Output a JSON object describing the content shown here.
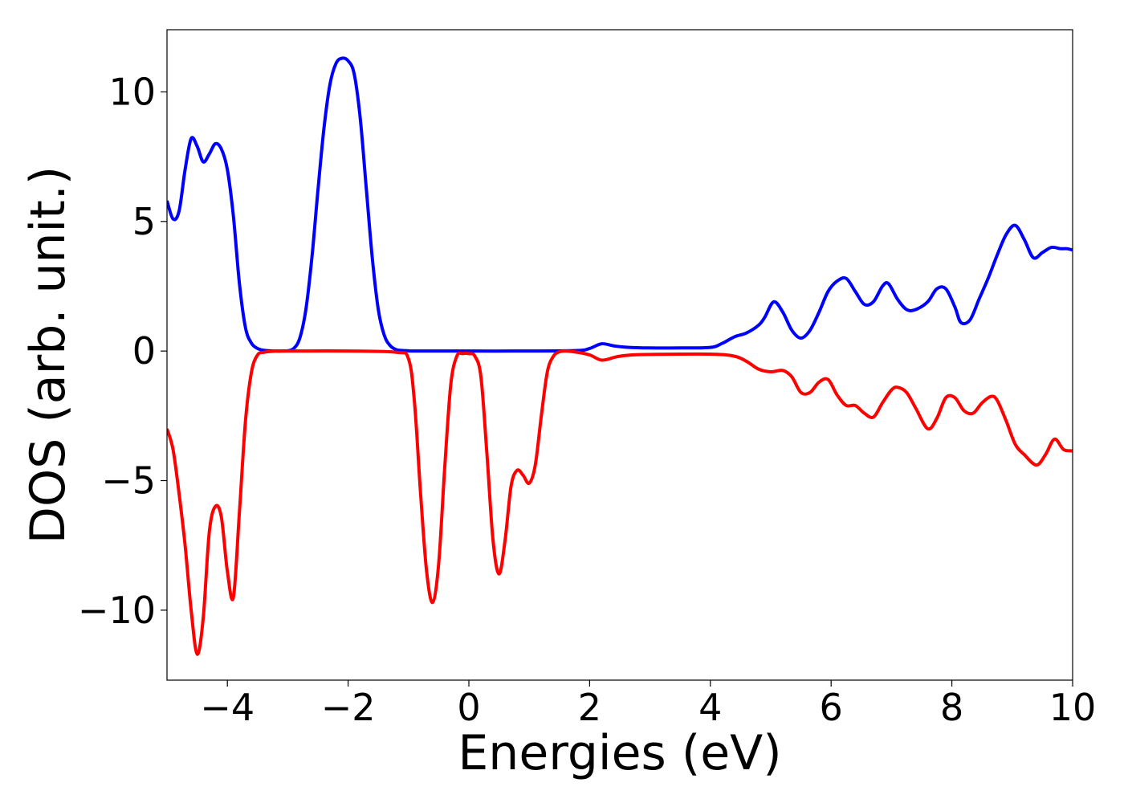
{
  "chart_data": {
    "type": "line",
    "title": "",
    "xlabel": "Energies (eV)",
    "ylabel": "DOS (arb. unit.)",
    "xlim": [
      -5,
      10
    ],
    "ylim": [
      -12.7,
      12.4
    ],
    "grid": false,
    "legend": "none",
    "xticks": [
      -4,
      -2,
      0,
      2,
      4,
      6,
      8,
      10
    ],
    "xtick_labels": [
      "−4",
      "−2",
      "0",
      "2",
      "4",
      "6",
      "8",
      "10"
    ],
    "yticks": [
      10,
      5,
      0,
      -5,
      -10
    ],
    "ytick_labels": [
      "10",
      "5",
      "0",
      "−5",
      "−10"
    ],
    "series": [
      {
        "color": "#0000ff",
        "x": [
          -5.0,
          -4.9,
          -4.8,
          -4.7,
          -4.6,
          -4.5,
          -4.4,
          -4.3,
          -4.2,
          -4.1,
          -4.0,
          -3.9,
          -3.8,
          -3.7,
          -3.6,
          -3.5,
          -3.4,
          -3.3,
          -3.2,
          -3.1,
          -3.0,
          -2.9,
          -2.8,
          -2.7,
          -2.6,
          -2.5,
          -2.4,
          -2.3,
          -2.2,
          -2.1,
          -2.0,
          -1.9,
          -1.8,
          -1.7,
          -1.6,
          -1.5,
          -1.4,
          -1.3,
          -1.2,
          -1.1,
          -1.0,
          -0.9,
          0.0,
          1.0,
          1.8,
          2.0,
          2.2,
          2.4,
          2.6,
          3.0,
          3.5,
          4.0,
          4.2,
          4.4,
          4.6,
          4.8,
          4.9,
          5.05,
          5.2,
          5.35,
          5.5,
          5.65,
          5.8,
          5.95,
          6.1,
          6.25,
          6.4,
          6.55,
          6.7,
          6.85,
          6.95,
          7.1,
          7.25,
          7.4,
          7.6,
          7.75,
          7.9,
          8.05,
          8.15,
          8.3,
          8.45,
          8.6,
          8.75,
          8.9,
          9.05,
          9.2,
          9.35,
          9.5,
          9.65,
          9.8,
          9.9,
          10.0
        ],
        "y": [
          5.8,
          5.1,
          5.4,
          7.0,
          8.2,
          7.9,
          7.3,
          7.6,
          8.0,
          7.8,
          7.0,
          5.2,
          2.6,
          0.9,
          0.3,
          0.1,
          0.03,
          0.01,
          0.0,
          0.0,
          0.01,
          0.1,
          0.5,
          1.6,
          3.6,
          6.2,
          8.6,
          10.3,
          11.1,
          11.3,
          11.2,
          10.7,
          9.0,
          6.3,
          3.6,
          1.6,
          0.6,
          0.2,
          0.05,
          0.02,
          0.01,
          0.0,
          0.0,
          0.0,
          0.02,
          0.1,
          0.28,
          0.2,
          0.15,
          0.12,
          0.12,
          0.14,
          0.3,
          0.55,
          0.7,
          1.0,
          1.3,
          1.9,
          1.5,
          0.8,
          0.5,
          0.8,
          1.5,
          2.3,
          2.7,
          2.8,
          2.3,
          1.8,
          1.9,
          2.5,
          2.6,
          2.0,
          1.6,
          1.6,
          1.9,
          2.4,
          2.4,
          1.7,
          1.1,
          1.2,
          2.0,
          2.8,
          3.7,
          4.5,
          4.85,
          4.3,
          3.6,
          3.8,
          4.0,
          3.95,
          3.95,
          3.9
        ]
      },
      {
        "color": "#ff0000",
        "x": [
          -5.0,
          -4.9,
          -4.8,
          -4.7,
          -4.6,
          -4.5,
          -4.4,
          -4.3,
          -4.2,
          -4.1,
          -4.0,
          -3.9,
          -3.8,
          -3.7,
          -3.6,
          -3.5,
          -3.4,
          -3.3,
          -3.2,
          -3.1,
          -3.0,
          -2.0,
          -1.2,
          -1.0,
          -0.9,
          -0.8,
          -0.7,
          -0.6,
          -0.5,
          -0.4,
          -0.3,
          -0.2,
          -0.1,
          0.0,
          0.1,
          0.2,
          0.3,
          0.4,
          0.5,
          0.6,
          0.7,
          0.8,
          0.9,
          1.0,
          1.1,
          1.2,
          1.3,
          1.4,
          1.5,
          1.6,
          1.8,
          2.0,
          2.2,
          2.4,
          2.5,
          2.7,
          3.0,
          4.0,
          4.4,
          4.6,
          4.8,
          5.0,
          5.2,
          5.35,
          5.5,
          5.65,
          5.8,
          5.95,
          6.1,
          6.25,
          6.4,
          6.55,
          6.7,
          6.85,
          7.0,
          7.1,
          7.25,
          7.4,
          7.6,
          7.75,
          7.9,
          8.05,
          8.2,
          8.35,
          8.5,
          8.65,
          8.75,
          8.9,
          9.05,
          9.2,
          9.4,
          9.55,
          9.7,
          9.85,
          10.0
        ],
        "y": [
          -3.0,
          -3.8,
          -5.5,
          -7.5,
          -10.0,
          -11.7,
          -10.3,
          -7.0,
          -6.0,
          -6.4,
          -8.5,
          -9.5,
          -6.2,
          -2.7,
          -0.8,
          -0.15,
          -0.05,
          -0.02,
          0.0,
          0.0,
          0.0,
          0.0,
          -0.05,
          -0.3,
          -2.0,
          -5.5,
          -8.5,
          -9.7,
          -8.2,
          -4.5,
          -1.3,
          -0.2,
          -0.1,
          -0.1,
          -0.2,
          -1.0,
          -4.0,
          -7.3,
          -8.6,
          -7.3,
          -5.2,
          -4.6,
          -4.8,
          -5.1,
          -4.4,
          -2.5,
          -0.8,
          -0.2,
          -0.03,
          0.0,
          -0.05,
          -0.15,
          -0.35,
          -0.25,
          -0.2,
          -0.15,
          -0.13,
          -0.12,
          -0.2,
          -0.4,
          -0.7,
          -0.8,
          -0.75,
          -1.0,
          -1.6,
          -1.6,
          -1.2,
          -1.1,
          -1.7,
          -2.1,
          -2.1,
          -2.4,
          -2.55,
          -2.0,
          -1.5,
          -1.4,
          -1.6,
          -2.2,
          -3.0,
          -2.6,
          -1.8,
          -1.8,
          -2.3,
          -2.4,
          -2.0,
          -1.75,
          -1.9,
          -2.7,
          -3.6,
          -4.0,
          -4.4,
          -4.0,
          -3.4,
          -3.8,
          -3.85
        ]
      }
    ]
  }
}
